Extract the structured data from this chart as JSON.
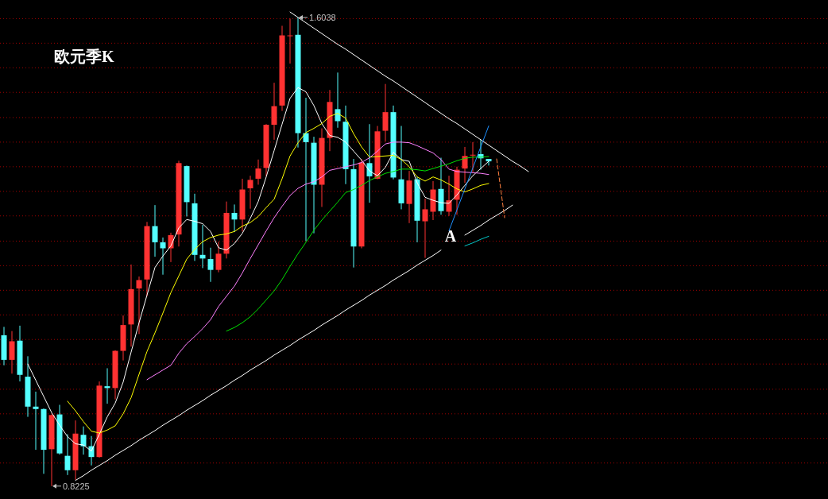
{
  "chart_data": {
    "type": "candlestick",
    "title": "欧元季K",
    "categories": [
      null,
      null,
      null,
      null,
      null,
      null,
      null,
      null,
      null,
      null,
      null,
      null,
      null,
      null,
      null,
      null,
      null,
      null,
      null,
      null,
      null,
      null,
      null,
      null,
      null,
      null,
      null,
      null,
      null,
      null,
      null,
      null,
      null,
      null,
      null,
      null,
      null,
      null,
      null,
      null,
      null,
      null,
      null,
      null,
      null,
      null,
      null,
      null,
      null,
      null,
      null,
      null,
      null,
      null,
      null,
      null,
      null,
      null,
      null,
      null,
      null,
      null,
      null,
      null,
      null,
      null,
      null
    ],
    "ohlc": [
      [
        1.074,
        1.088,
        1.024,
        1.033
      ],
      [
        1.033,
        1.081,
        1.01,
        1.064
      ],
      [
        1.065,
        1.09,
        0.997,
        1.008
      ],
      [
        1.005,
        1.039,
        0.938,
        0.955
      ],
      [
        0.955,
        0.98,
        0.883,
        0.951
      ],
      [
        0.951,
        0.952,
        0.843,
        0.883
      ],
      [
        0.884,
        0.942,
        0.8225,
        0.941
      ],
      [
        0.942,
        0.958,
        0.875,
        0.877
      ],
      [
        0.873,
        0.909,
        0.841,
        0.849
      ],
      [
        0.849,
        0.932,
        0.833,
        0.91
      ],
      [
        0.908,
        0.922,
        0.875,
        0.889
      ],
      [
        0.889,
        0.906,
        0.857,
        0.871
      ],
      [
        0.871,
        0.997,
        0.87,
        0.99
      ],
      [
        0.989,
        1.019,
        0.96,
        0.986
      ],
      [
        0.986,
        1.049,
        0.967,
        1.048
      ],
      [
        1.048,
        1.107,
        1.032,
        1.091
      ],
      [
        1.092,
        1.192,
        1.055,
        1.151
      ],
      [
        1.152,
        1.172,
        1.076,
        1.166
      ],
      [
        1.167,
        1.263,
        1.139,
        1.256
      ],
      [
        1.256,
        1.291,
        1.205,
        1.229
      ],
      [
        1.229,
        1.237,
        1.175,
        1.219
      ],
      [
        1.219,
        1.245,
        1.196,
        1.241
      ],
      [
        1.242,
        1.365,
        1.222,
        1.361
      ],
      [
        1.356,
        1.357,
        1.272,
        1.296
      ],
      [
        1.294,
        1.31,
        1.198,
        1.208
      ],
      [
        1.208,
        1.258,
        1.186,
        1.202
      ],
      [
        1.201,
        1.22,
        1.163,
        1.183
      ],
      [
        1.183,
        1.23,
        1.179,
        1.21
      ],
      [
        1.21,
        1.297,
        1.202,
        1.278
      ],
      [
        1.278,
        1.292,
        1.246,
        1.267
      ],
      [
        1.267,
        1.335,
        1.247,
        1.317
      ],
      [
        1.319,
        1.34,
        1.285,
        1.333
      ],
      [
        1.335,
        1.367,
        1.325,
        1.352
      ],
      [
        1.353,
        1.426,
        1.339,
        1.425
      ],
      [
        1.425,
        1.495,
        1.4,
        1.456
      ],
      [
        1.457,
        1.59,
        1.448,
        1.574
      ],
      [
        1.573,
        1.602,
        1.527,
        1.574
      ],
      [
        1.575,
        1.6038,
        1.387,
        1.411
      ],
      [
        1.411,
        1.47,
        1.231,
        1.396
      ],
      [
        1.395,
        1.405,
        1.244,
        1.325
      ],
      [
        1.325,
        1.419,
        1.288,
        1.403
      ],
      [
        1.403,
        1.483,
        1.381,
        1.463
      ],
      [
        1.451,
        1.512,
        1.42,
        1.431
      ],
      [
        1.43,
        1.457,
        1.326,
        1.351
      ],
      [
        1.351,
        1.368,
        1.187,
        1.222
      ],
      [
        1.222,
        1.368,
        1.219,
        1.362
      ],
      [
        1.361,
        1.426,
        1.295,
        1.339
      ],
      [
        1.335,
        1.423,
        1.334,
        1.414
      ],
      [
        1.415,
        1.493,
        1.397,
        1.446
      ],
      [
        1.446,
        1.457,
        1.334,
        1.337
      ],
      [
        1.334,
        1.423,
        1.284,
        1.294
      ],
      [
        1.293,
        1.348,
        1.261,
        1.332
      ],
      [
        1.334,
        1.338,
        1.229,
        1.265
      ],
      [
        1.264,
        1.302,
        1.203,
        1.284
      ],
      [
        1.28,
        1.331,
        1.266,
        1.317
      ],
      [
        1.318,
        1.37,
        1.275,
        1.281
      ],
      [
        1.28,
        1.34,
        1.273,
        1.299
      ],
      [
        1.3,
        1.355,
        1.275,
        1.35
      ],
      [
        1.352,
        1.388,
        1.328,
        1.373
      ],
      [
        1.374,
        1.396,
        1.346,
        1.375
      ],
      [
        1.376,
        1.4,
        1.35,
        1.369
      ],
      [
        1.368,
        1.368,
        1.357,
        1.364
      ],
      null,
      null,
      null,
      null,
      null
    ],
    "series": [
      {
        "type": "line",
        "color": "#ffffff",
        "values": [
          null,
          null,
          null,
          1.026,
          0.999,
          0.972,
          0.945,
          0.924,
          0.905,
          0.893,
          0.891,
          0.881,
          0.909,
          0.938,
          0.961,
          0.996,
          1.046,
          1.095,
          1.141,
          1.187,
          1.206,
          1.223,
          1.253,
          1.267,
          1.264,
          1.26,
          1.247,
          1.22,
          1.216,
          1.227,
          1.244,
          1.269,
          1.297,
          1.338,
          1.382,
          1.426,
          1.469,
          1.487,
          1.48,
          1.457,
          1.427,
          1.407,
          1.404,
          1.396,
          1.381,
          1.366,
          1.348,
          1.34,
          1.354,
          1.379,
          1.367,
          1.364,
          1.328,
          1.304,
          1.299,
          1.295,
          1.294,
          1.308,
          1.324,
          1.34,
          1.352,
          1.364,
          null,
          null,
          null,
          null,
          null
        ]
      },
      {
        "type": "line",
        "color": "#ffff00",
        "values": [
          null,
          null,
          null,
          null,
          null,
          null,
          null,
          null,
          0.964,
          0.948,
          0.93,
          0.914,
          0.911,
          0.916,
          0.923,
          0.943,
          0.97,
          1.009,
          1.047,
          1.078,
          1.111,
          1.145,
          1.173,
          1.201,
          1.217,
          1.23,
          1.237,
          1.241,
          1.243,
          1.247,
          1.256,
          1.262,
          1.272,
          1.287,
          1.301,
          1.335,
          1.373,
          1.395,
          1.412,
          1.419,
          1.427,
          1.439,
          1.444,
          1.436,
          1.41,
          1.388,
          1.371,
          1.372,
          1.373,
          1.374,
          1.367,
          1.355,
          1.338,
          1.331,
          1.338,
          1.333,
          1.326,
          1.318,
          1.313,
          1.318,
          1.324,
          1.327,
          null,
          null,
          null,
          null,
          null
        ]
      },
      {
        "type": "line",
        "color": "#ff80ff",
        "values": [
          null,
          null,
          null,
          null,
          null,
          null,
          null,
          null,
          null,
          null,
          null,
          null,
          null,
          null,
          null,
          null,
          null,
          null,
          1.0,
          1.008,
          1.016,
          1.024,
          1.044,
          1.06,
          1.072,
          1.085,
          1.1,
          1.122,
          1.139,
          1.156,
          1.178,
          1.202,
          1.225,
          1.248,
          1.27,
          1.289,
          1.307,
          1.319,
          1.326,
          1.33,
          1.338,
          1.349,
          1.352,
          1.355,
          1.358,
          1.362,
          1.37,
          1.381,
          1.393,
          1.396,
          1.396,
          1.395,
          1.39,
          1.384,
          1.378,
          1.367,
          1.351,
          1.347,
          1.346,
          1.345,
          1.344,
          1.342,
          null,
          null,
          null,
          null,
          null
        ]
      },
      {
        "type": "line",
        "color": "#00e000",
        "values": [
          null,
          null,
          null,
          null,
          null,
          null,
          null,
          null,
          null,
          null,
          null,
          null,
          null,
          null,
          null,
          null,
          null,
          null,
          null,
          null,
          null,
          null,
          null,
          null,
          null,
          null,
          null,
          null,
          1.081,
          1.087,
          1.095,
          1.105,
          1.118,
          1.133,
          1.148,
          1.167,
          1.189,
          1.21,
          1.229,
          1.249,
          1.266,
          1.281,
          1.296,
          1.312,
          1.317,
          1.324,
          1.332,
          1.338,
          1.344,
          1.347,
          1.351,
          1.351,
          1.35,
          1.348,
          1.352,
          1.356,
          1.36,
          1.365,
          1.369,
          1.371,
          1.371,
          1.372,
          null,
          null,
          null,
          null,
          null
        ]
      },
      {
        "type": "line",
        "color": "#ffffff",
        "values": [
          null,
          null,
          null,
          null,
          null,
          null,
          null,
          null,
          null,
          0.832,
          0.84,
          0.849,
          0.857,
          0.865,
          0.874,
          0.882,
          0.89,
          0.899,
          0.907,
          0.915,
          0.924,
          0.932,
          0.94,
          0.949,
          0.957,
          0.965,
          0.974,
          0.982,
          0.99,
          0.999,
          1.007,
          1.016,
          1.024,
          1.032,
          1.041,
          1.049,
          1.057,
          1.066,
          1.074,
          1.082,
          1.091,
          1.099,
          1.107,
          1.116,
          1.124,
          1.132,
          1.141,
          1.149,
          1.157,
          1.166,
          1.174,
          1.182,
          1.191,
          1.199,
          1.207,
          1.216,
          null,
          null,
          1.241,
          1.249,
          1.257,
          1.266,
          1.274,
          1.282,
          1.291,
          null,
          null
        ]
      },
      {
        "type": "line",
        "color": "#ffffff",
        "values": [
          null,
          null,
          null,
          null,
          null,
          null,
          null,
          null,
          null,
          null,
          null,
          null,
          null,
          null,
          null,
          null,
          null,
          null,
          null,
          null,
          null,
          null,
          null,
          null,
          null,
          null,
          null,
          null,
          null,
          null,
          null,
          null,
          null,
          null,
          null,
          null,
          1.613,
          1.604,
          1.595,
          1.586,
          1.577,
          1.568,
          1.559,
          1.551,
          1.542,
          1.533,
          1.524,
          1.515,
          1.506,
          1.498,
          1.489,
          1.48,
          1.471,
          1.462,
          1.453,
          1.444,
          1.435,
          1.427,
          1.418,
          1.409,
          1.4,
          1.391,
          1.382,
          1.373,
          1.364,
          1.356,
          1.347
        ]
      },
      {
        "type": "line",
        "color": "#1e90ff",
        "values": [
          null,
          null,
          null,
          null,
          null,
          null,
          null,
          null,
          null,
          null,
          null,
          null,
          null,
          null,
          null,
          null,
          null,
          null,
          null,
          null,
          null,
          null,
          null,
          null,
          null,
          null,
          null,
          null,
          null,
          null,
          null,
          null,
          null,
          null,
          null,
          null,
          null,
          null,
          null,
          null,
          null,
          null,
          null,
          null,
          null,
          null,
          null,
          null,
          null,
          null,
          null,
          null,
          null,
          null,
          null,
          null,
          1.248,
          1.283,
          1.318,
          1.353,
          1.388,
          1.423,
          null,
          null,
          null,
          null,
          null
        ]
      },
      {
        "type": "line",
        "color": "#00c8c8",
        "values": [
          null,
          null,
          null,
          null,
          null,
          null,
          null,
          null,
          null,
          null,
          null,
          null,
          null,
          null,
          null,
          null,
          null,
          null,
          null,
          null,
          null,
          null,
          null,
          null,
          null,
          null,
          null,
          null,
          null,
          null,
          null,
          null,
          null,
          null,
          null,
          null,
          null,
          null,
          null,
          null,
          null,
          null,
          null,
          null,
          null,
          null,
          null,
          null,
          null,
          null,
          null,
          null,
          null,
          null,
          null,
          null,
          null,
          null,
          1.223,
          1.228,
          1.234,
          1.239,
          null,
          null,
          null,
          null,
          null
        ]
      },
      {
        "type": "line",
        "color": "#ff8040",
        "line_style": "dashed",
        "values": [
          null,
          null,
          null,
          null,
          null,
          null,
          null,
          null,
          null,
          null,
          null,
          null,
          null,
          null,
          null,
          null,
          null,
          null,
          null,
          null,
          null,
          null,
          null,
          null,
          null,
          null,
          null,
          null,
          null,
          null,
          null,
          null,
          null,
          null,
          null,
          null,
          null,
          null,
          null,
          null,
          null,
          null,
          null,
          null,
          null,
          null,
          null,
          null,
          null,
          null,
          null,
          null,
          null,
          null,
          null,
          null,
          null,
          null,
          null,
          null,
          null,
          null,
          1.368,
          1.27,
          null,
          null,
          null
        ]
      }
    ],
    "annotations": [
      "1.6038",
      "0.8225",
      "A"
    ],
    "ylim": [
      0.801,
      1.633
    ],
    "yticks": [
      {
        "value": 0.861,
        "label": null
      },
      {
        "value": 0.902,
        "label": null
      },
      {
        "value": 0.943,
        "label": null
      },
      {
        "value": 0.984,
        "label": null
      },
      {
        "value": 1.026,
        "label": null
      },
      {
        "value": 1.067,
        "label": null
      },
      {
        "value": 1.108,
        "label": null
      },
      {
        "value": 1.149,
        "label": null
      },
      {
        "value": 1.19,
        "label": null
      },
      {
        "value": 1.231,
        "label": null
      },
      {
        "value": 1.273,
        "label": null
      },
      {
        "value": 1.314,
        "label": null
      },
      {
        "value": 1.355,
        "label": null
      },
      {
        "value": 1.396,
        "label": null
      },
      {
        "value": 1.437,
        "label": null
      },
      {
        "value": 1.479,
        "label": null
      },
      {
        "value": 1.52,
        "label": null
      },
      {
        "value": 1.561,
        "label": null
      },
      {
        "value": 1.602,
        "label": null
      }
    ],
    "grid": "y"
  }
}
